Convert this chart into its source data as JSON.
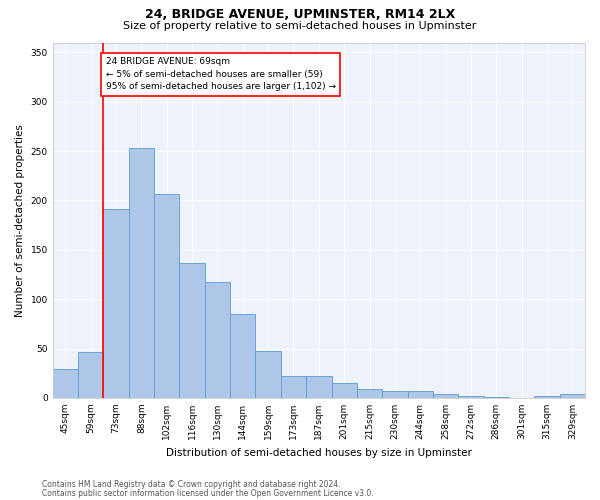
{
  "title": "24, BRIDGE AVENUE, UPMINSTER, RM14 2LX",
  "subtitle": "Size of property relative to semi-detached houses in Upminster",
  "xlabel": "Distribution of semi-detached houses by size in Upminster",
  "ylabel": "Number of semi-detached properties",
  "footnote1": "Contains HM Land Registry data © Crown copyright and database right 2024.",
  "footnote2": "Contains public sector information licensed under the Open Government Licence v3.0.",
  "categories": [
    "45sqm",
    "59sqm",
    "73sqm",
    "88sqm",
    "102sqm",
    "116sqm",
    "130sqm",
    "144sqm",
    "159sqm",
    "173sqm",
    "187sqm",
    "201sqm",
    "215sqm",
    "230sqm",
    "244sqm",
    "258sqm",
    "272sqm",
    "286sqm",
    "301sqm",
    "315sqm",
    "329sqm"
  ],
  "values": [
    29,
    47,
    191,
    253,
    207,
    137,
    117,
    85,
    48,
    22,
    22,
    15,
    9,
    7,
    7,
    4,
    2,
    1,
    0,
    2,
    4
  ],
  "bar_color": "#aec6e8",
  "bar_edge_color": "#5b9bd5",
  "bar_linewidth": 0.6,
  "annotation_line1": "24 BRIDGE AVENUE: 69sqm",
  "annotation_line2": "← 5% of semi-detached houses are smaller (59)",
  "annotation_line3": "95% of semi-detached houses are larger (1,102) →",
  "annotation_box_color": "white",
  "annotation_box_edge_color": "red",
  "vline_color": "red",
  "vline_x": 1.5,
  "ylim": [
    0,
    360
  ],
  "yticks": [
    0,
    50,
    100,
    150,
    200,
    250,
    300,
    350
  ],
  "background_color": "#eef3fb",
  "grid_color": "white",
  "title_fontsize": 9,
  "subtitle_fontsize": 8,
  "axis_label_fontsize": 7.5,
  "tick_fontsize": 6.5,
  "annotation_fontsize": 6.5,
  "footnote_fontsize": 5.5
}
